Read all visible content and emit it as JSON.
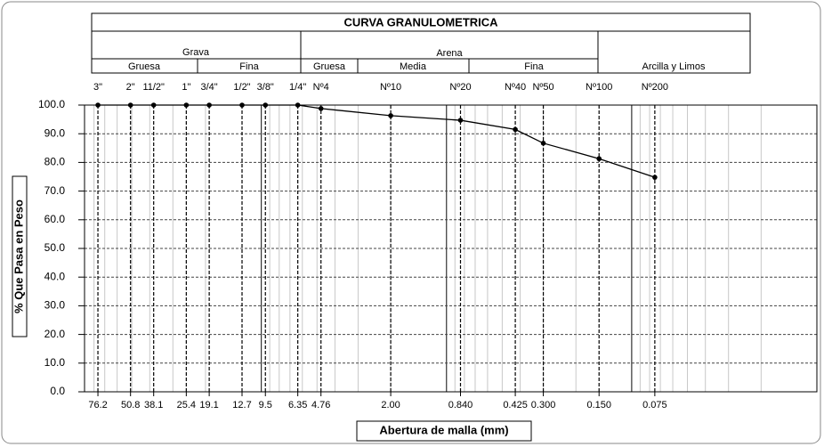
{
  "chart_data": {
    "type": "line",
    "title": "CURVA GRANULOMETRICA",
    "classification": {
      "grava": {
        "name": "Grava",
        "parts": [
          "Gruesa",
          "Fina"
        ]
      },
      "arena": {
        "name": "Arena",
        "parts": [
          "Gruesa",
          "Media",
          "Fina"
        ]
      },
      "finos": "Arcilla y Limos"
    },
    "sieve_labels": [
      "3\"",
      "2\"",
      "11/2\"",
      "1\"",
      "3/4\"",
      "1/2\"",
      "3/8\"",
      "1/4\"",
      "Nº4",
      "Nº10",
      "Nº20",
      "Nº40",
      "Nº50",
      "Nº100",
      "Nº200"
    ],
    "x": [
      76.2,
      50.8,
      38.1,
      25.4,
      19.1,
      12.7,
      9.5,
      6.35,
      4.76,
      2.0,
      0.84,
      0.425,
      0.3,
      0.15,
      0.075
    ],
    "values": [
      100,
      100,
      100,
      100,
      100,
      100,
      100,
      100,
      98.8,
      96.3,
      94.7,
      91.5,
      86.7,
      81.3,
      74.8
    ],
    "color": "#000000",
    "x_log": true,
    "xlim": [
      90,
      0.01
    ],
    "xticks": [
      76.2,
      50.8,
      38.1,
      25.4,
      19.1,
      12.7,
      9.5,
      6.35,
      4.76,
      {
        "value": 2.0,
        "label": "2.00"
      },
      {
        "value": 0.84,
        "label": "0.840"
      },
      0.425,
      {
        "value": 0.3,
        "label": "0.300"
      },
      {
        "value": 0.15,
        "label": "0.150"
      },
      0.075
    ],
    "ylim": [
      0,
      100
    ],
    "yticks": [
      {
        "value": 0,
        "label": "0.0"
      },
      {
        "value": 10,
        "label": "10.0"
      },
      {
        "value": 20,
        "label": "20.0"
      },
      {
        "value": 30,
        "label": "30.0"
      },
      {
        "value": 40,
        "label": "40.0"
      },
      {
        "value": 50,
        "label": "50.0"
      },
      {
        "value": 60,
        "label": "60.0"
      },
      {
        "value": 70,
        "label": "70.0"
      },
      {
        "value": 80,
        "label": "80.0"
      },
      {
        "value": 90,
        "label": "90.0"
      },
      {
        "value": 100,
        "label": "100.0"
      }
    ],
    "ylabel": "% Que Pasa en Peso",
    "xlabel": "Abertura de malla (mm)",
    "grid": true
  }
}
